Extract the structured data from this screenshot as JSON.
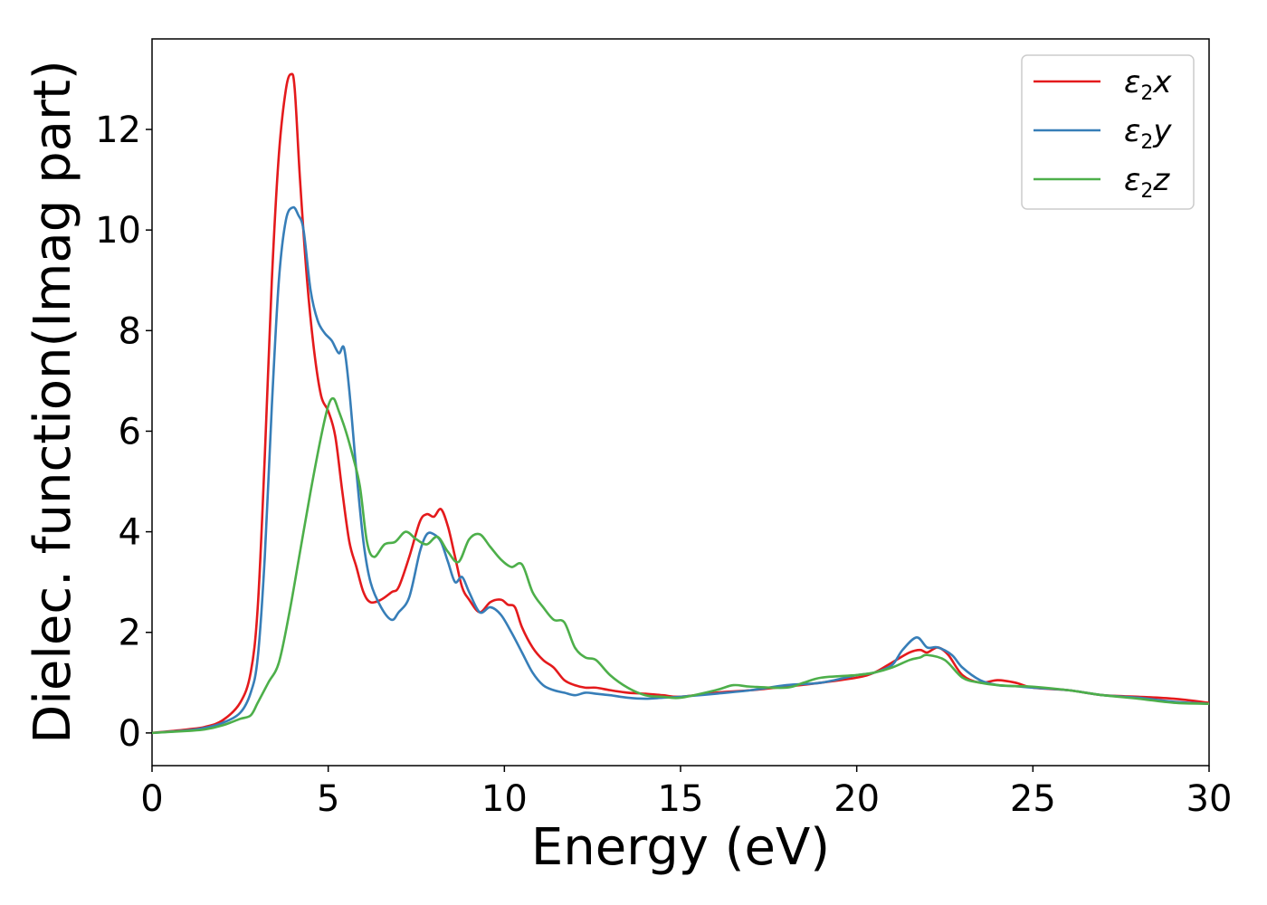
{
  "chart_data": {
    "type": "line",
    "title": "",
    "xlabel": "Energy (eV)",
    "ylabel": "Dielec. function(Imag part)",
    "xlim": [
      0,
      30
    ],
    "ylim": [
      -0.65,
      13.8
    ],
    "xticks": [
      0,
      5,
      10,
      15,
      20,
      25,
      30
    ],
    "yticks": [
      0,
      2,
      4,
      6,
      8,
      10,
      12
    ],
    "grid": false,
    "legend_position": "top-right",
    "series": [
      {
        "name": "ε₂x",
        "label_parts": [
          "ε",
          "2",
          "x"
        ],
        "color": "#e41a1c",
        "x": [
          0,
          1,
          1.5,
          2,
          2.5,
          2.8,
          3.0,
          3.2,
          3.4,
          3.6,
          3.8,
          3.95,
          4.05,
          4.2,
          4.4,
          4.6,
          4.8,
          5.0,
          5.2,
          5.4,
          5.6,
          5.8,
          6.0,
          6.2,
          6.5,
          6.8,
          7.0,
          7.3,
          7.6,
          7.8,
          8.0,
          8.2,
          8.4,
          8.6,
          8.8,
          9.0,
          9.3,
          9.6,
          9.9,
          10.1,
          10.3,
          10.5,
          10.8,
          11.1,
          11.4,
          11.7,
          12.0,
          12.3,
          12.6,
          13.0,
          13.5,
          14.0,
          14.5,
          15.0,
          16.0,
          17.0,
          18.0,
          19.0,
          20.0,
          20.5,
          21.0,
          21.5,
          21.8,
          22.0,
          22.3,
          22.6,
          23.0,
          23.5,
          24.0,
          24.5,
          25.0,
          26.0,
          27.0,
          28.0,
          29.0,
          30.0
        ],
        "y": [
          0,
          0.07,
          0.12,
          0.25,
          0.6,
          1.2,
          2.5,
          5.5,
          9.0,
          11.5,
          12.8,
          13.1,
          12.8,
          11.0,
          9.0,
          7.6,
          6.7,
          6.4,
          5.9,
          4.8,
          3.8,
          3.3,
          2.8,
          2.6,
          2.65,
          2.8,
          2.9,
          3.5,
          4.2,
          4.35,
          4.3,
          4.45,
          4.1,
          3.5,
          2.9,
          2.65,
          2.4,
          2.6,
          2.65,
          2.55,
          2.5,
          2.1,
          1.7,
          1.45,
          1.3,
          1.05,
          0.95,
          0.9,
          0.9,
          0.85,
          0.8,
          0.78,
          0.75,
          0.72,
          0.8,
          0.85,
          0.92,
          1.0,
          1.1,
          1.2,
          1.4,
          1.6,
          1.65,
          1.6,
          1.7,
          1.55,
          1.15,
          1.0,
          1.05,
          1.0,
          0.9,
          0.85,
          0.75,
          0.72,
          0.68,
          0.6
        ]
      },
      {
        "name": "ε₂y",
        "label_parts": [
          "ε",
          "2",
          "y"
        ],
        "color": "#377eb8",
        "x": [
          0,
          1,
          1.5,
          2,
          2.5,
          2.8,
          3.0,
          3.2,
          3.4,
          3.6,
          3.8,
          4.0,
          4.15,
          4.3,
          4.5,
          4.7,
          4.9,
          5.1,
          5.3,
          5.45,
          5.6,
          5.8,
          6.0,
          6.2,
          6.5,
          6.8,
          7.0,
          7.3,
          7.6,
          7.8,
          8.0,
          8.2,
          8.4,
          8.6,
          8.8,
          9.0,
          9.3,
          9.6,
          9.9,
          10.2,
          10.5,
          10.8,
          11.1,
          11.4,
          11.7,
          12.0,
          12.3,
          12.6,
          13.0,
          13.5,
          14.0,
          14.5,
          15.0,
          16.0,
          17.0,
          18.0,
          19.0,
          20.0,
          20.5,
          21.0,
          21.3,
          21.7,
          22.0,
          22.3,
          22.7,
          23.0,
          23.5,
          24.0,
          24.5,
          25.0,
          26.0,
          27.0,
          28.0,
          29.0,
          30.0
        ],
        "y": [
          0,
          0.05,
          0.1,
          0.2,
          0.4,
          0.8,
          1.5,
          3.5,
          6.5,
          9.0,
          10.2,
          10.45,
          10.3,
          10.0,
          8.8,
          8.2,
          7.95,
          7.8,
          7.55,
          7.65,
          6.8,
          5.2,
          3.8,
          3.0,
          2.5,
          2.25,
          2.4,
          2.7,
          3.6,
          3.95,
          3.95,
          3.8,
          3.4,
          3.0,
          3.1,
          2.8,
          2.4,
          2.5,
          2.35,
          2.0,
          1.6,
          1.2,
          0.95,
          0.85,
          0.8,
          0.75,
          0.8,
          0.78,
          0.75,
          0.7,
          0.68,
          0.7,
          0.72,
          0.78,
          0.85,
          0.95,
          1.0,
          1.15,
          1.2,
          1.35,
          1.65,
          1.9,
          1.7,
          1.7,
          1.55,
          1.3,
          1.05,
          0.95,
          0.93,
          0.9,
          0.85,
          0.75,
          0.7,
          0.62,
          0.58
        ]
      },
      {
        "name": "ε₂z",
        "label_parts": [
          "ε",
          "2",
          "z"
        ],
        "color": "#4daf4a",
        "x": [
          0,
          1,
          1.5,
          2,
          2.5,
          2.8,
          3.0,
          3.3,
          3.6,
          3.9,
          4.2,
          4.5,
          4.8,
          5.0,
          5.15,
          5.3,
          5.5,
          5.7,
          5.9,
          6.1,
          6.3,
          6.6,
          6.9,
          7.2,
          7.5,
          7.8,
          8.1,
          8.4,
          8.7,
          9.0,
          9.3,
          9.6,
          9.9,
          10.2,
          10.5,
          10.8,
          11.1,
          11.4,
          11.7,
          12.0,
          12.3,
          12.6,
          13.0,
          13.5,
          14.0,
          14.5,
          15.0,
          16.0,
          16.5,
          17.0,
          18.0,
          18.5,
          19.0,
          20.0,
          20.5,
          21.0,
          21.5,
          21.8,
          22.0,
          22.5,
          23.0,
          23.5,
          24.0,
          24.5,
          25.0,
          26.0,
          27.0,
          28.0,
          29.0,
          30.0
        ],
        "y": [
          0,
          0.04,
          0.07,
          0.15,
          0.28,
          0.35,
          0.6,
          1.0,
          1.4,
          2.4,
          3.6,
          4.8,
          5.9,
          6.5,
          6.65,
          6.4,
          6.0,
          5.5,
          4.9,
          3.8,
          3.5,
          3.75,
          3.8,
          4.0,
          3.85,
          3.75,
          3.9,
          3.6,
          3.4,
          3.85,
          3.95,
          3.7,
          3.45,
          3.3,
          3.35,
          2.8,
          2.5,
          2.25,
          2.2,
          1.7,
          1.5,
          1.45,
          1.15,
          0.9,
          0.75,
          0.72,
          0.7,
          0.85,
          0.95,
          0.92,
          0.9,
          1.0,
          1.1,
          1.15,
          1.2,
          1.3,
          1.45,
          1.5,
          1.55,
          1.45,
          1.1,
          1.0,
          0.95,
          0.93,
          0.92,
          0.85,
          0.75,
          0.68,
          0.6,
          0.58
        ]
      }
    ]
  }
}
